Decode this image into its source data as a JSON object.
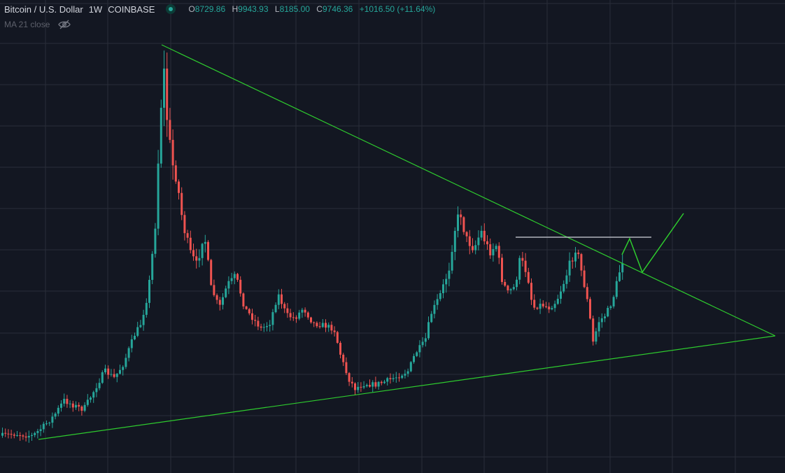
{
  "legend": {
    "symbol": "Bitcoin / U.S. Dollar",
    "interval": "1W",
    "exchange": "COINBASE",
    "open_label": "O",
    "open": "8729.86",
    "high_label": "H",
    "high": "9943.93",
    "low_label": "L",
    "low": "8185.00",
    "close_label": "C",
    "close": "9746.36",
    "change": "+1016.50 (+11.64%)"
  },
  "indicator": {
    "label": "MA 21 close"
  },
  "colors": {
    "background": "#131722",
    "grid": "#2a2e39",
    "up": "#26a69a",
    "down": "#ef5350",
    "trendline": "#2ecc2e",
    "resistance": "#d1d4dc"
  },
  "icons": [
    "market-status-icon",
    "visibility-off-icon"
  ],
  "chart_data": {
    "type": "candlestick",
    "series": [
      {
        "name": "Bitcoin / U.S. Dollar",
        "values": []
      }
    ]
  }
}
